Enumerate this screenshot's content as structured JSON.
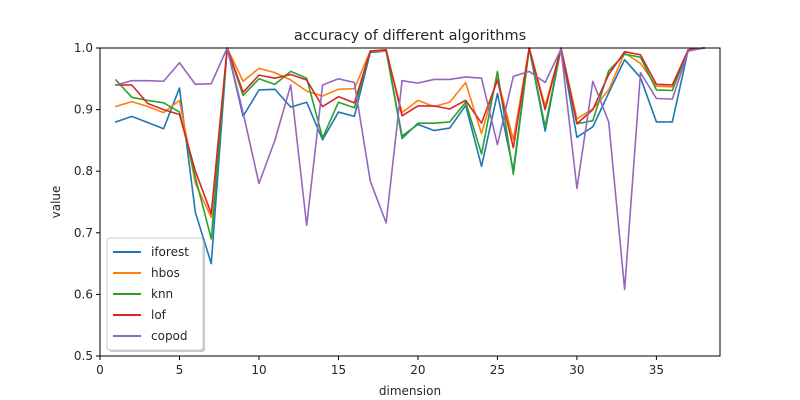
{
  "chart_data": {
    "type": "line",
    "title": "accuracy of different algorithms",
    "xlabel": "dimension",
    "ylabel": "value",
    "xlim": [
      0,
      39
    ],
    "ylim": [
      0.5,
      1.0
    ],
    "xticks": [
      0,
      5,
      10,
      15,
      20,
      25,
      30,
      35
    ],
    "yticks": [
      0.5,
      0.6,
      0.7,
      0.8,
      0.9,
      1.0
    ],
    "ytick_labels": [
      "0.5",
      "0.6",
      "0.7",
      "0.8",
      "0.9",
      "1.0"
    ],
    "grid": false,
    "legend_position": "lower-left",
    "x": [
      1,
      2,
      3,
      4,
      5,
      6,
      7,
      8,
      9,
      10,
      11,
      12,
      13,
      14,
      15,
      16,
      17,
      18,
      19,
      20,
      21,
      22,
      23,
      24,
      25,
      26,
      27,
      28,
      29,
      30,
      31,
      32,
      33,
      34,
      35,
      36,
      37,
      38
    ],
    "series": [
      {
        "name": "iforest",
        "color": "#1f77b4",
        "values": [
          0.88,
          0.889,
          0.879,
          0.869,
          0.935,
          0.733,
          0.65,
          1.0,
          0.889,
          0.932,
          0.933,
          0.904,
          0.912,
          0.851,
          0.896,
          0.889,
          0.993,
          0.995,
          0.857,
          0.876,
          0.866,
          0.87,
          0.907,
          0.808,
          0.926,
          0.801,
          1.0,
          0.865,
          1.0,
          0.855,
          0.872,
          0.927,
          0.981,
          0.952,
          0.88,
          0.88,
          0.997,
          1.0
        ]
      },
      {
        "name": "hbos",
        "color": "#ff7f0e",
        "values": [
          0.905,
          0.913,
          0.905,
          0.895,
          0.915,
          0.78,
          0.725,
          1.0,
          0.946,
          0.967,
          0.96,
          0.948,
          0.93,
          0.922,
          0.933,
          0.934,
          0.995,
          0.995,
          0.895,
          0.915,
          0.905,
          0.912,
          0.944,
          0.861,
          0.951,
          0.851,
          1.0,
          0.906,
          1.0,
          0.885,
          0.901,
          0.932,
          0.992,
          0.975,
          0.938,
          0.937,
          0.997,
          1.0
        ]
      },
      {
        "name": "knn",
        "color": "#2ca02c",
        "values": [
          0.948,
          0.92,
          0.915,
          0.911,
          0.896,
          0.79,
          0.69,
          1.0,
          0.923,
          0.95,
          0.941,
          0.962,
          0.951,
          0.854,
          0.912,
          0.903,
          0.995,
          0.997,
          0.853,
          0.878,
          0.878,
          0.88,
          0.912,
          0.828,
          0.962,
          0.795,
          1.0,
          0.872,
          1.0,
          0.877,
          0.882,
          0.963,
          0.99,
          0.985,
          0.932,
          0.931,
          0.997,
          1.0
        ]
      },
      {
        "name": "lof",
        "color": "#d62728",
        "values": [
          0.94,
          0.94,
          0.91,
          0.9,
          0.892,
          0.8,
          0.731,
          1.0,
          0.928,
          0.956,
          0.951,
          0.957,
          0.948,
          0.905,
          0.921,
          0.911,
          0.995,
          0.997,
          0.89,
          0.906,
          0.906,
          0.901,
          0.915,
          0.878,
          0.948,
          0.838,
          1.0,
          0.9,
          1.0,
          0.877,
          0.9,
          0.957,
          0.994,
          0.989,
          0.941,
          0.94,
          0.997,
          1.0
        ]
      },
      {
        "name": "copod",
        "color": "#9467bd",
        "values": [
          0.94,
          0.947,
          0.947,
          0.946,
          0.976,
          0.941,
          0.942,
          1.0,
          0.895,
          0.78,
          0.85,
          0.94,
          0.712,
          0.94,
          0.95,
          0.944,
          0.784,
          0.716,
          0.947,
          0.943,
          0.949,
          0.949,
          0.953,
          0.951,
          0.843,
          0.954,
          0.962,
          0.944,
          0.998,
          0.772,
          0.946,
          0.88,
          0.608,
          0.96,
          0.918,
          0.917,
          0.995,
          1.0
        ]
      }
    ]
  }
}
